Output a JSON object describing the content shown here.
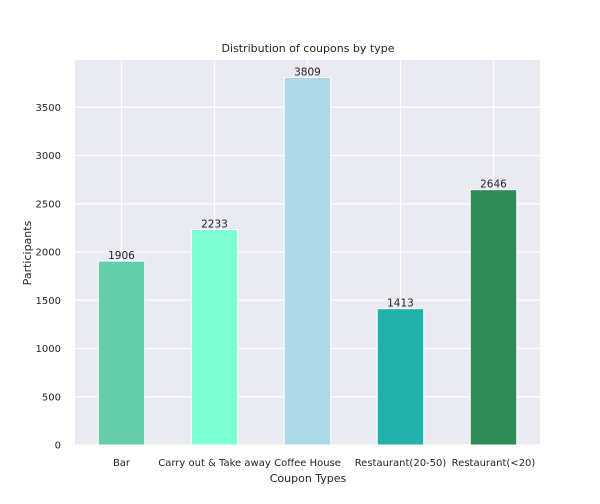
{
  "chart_data": {
    "type": "bar",
    "title": "Distribution of coupons by type",
    "xlabel": "Coupon Types",
    "ylabel": "Participants",
    "categories": [
      "Bar",
      "Carry out & Take away",
      "Coffee House",
      "Restaurant(20-50)",
      "Restaurant(<20)"
    ],
    "values": [
      1906,
      2233,
      3809,
      1413,
      2646
    ],
    "value_labels": [
      "1906",
      "2233",
      "3809",
      "1413",
      "2646"
    ],
    "colors": [
      "#66cdaa",
      "#7fffd4",
      "#add8e6",
      "#20b2aa",
      "#2e8b57"
    ],
    "ylim": [
      0,
      3990
    ],
    "yticks": [
      0,
      500,
      1000,
      1500,
      2000,
      2500,
      3000,
      3500
    ],
    "ytick_labels": [
      "0",
      "500",
      "1000",
      "1500",
      "2000",
      "2500",
      "3000",
      "3500"
    ],
    "grid": true,
    "background_color": "#eaeaf2",
    "grid_color": "#ffffff"
  }
}
